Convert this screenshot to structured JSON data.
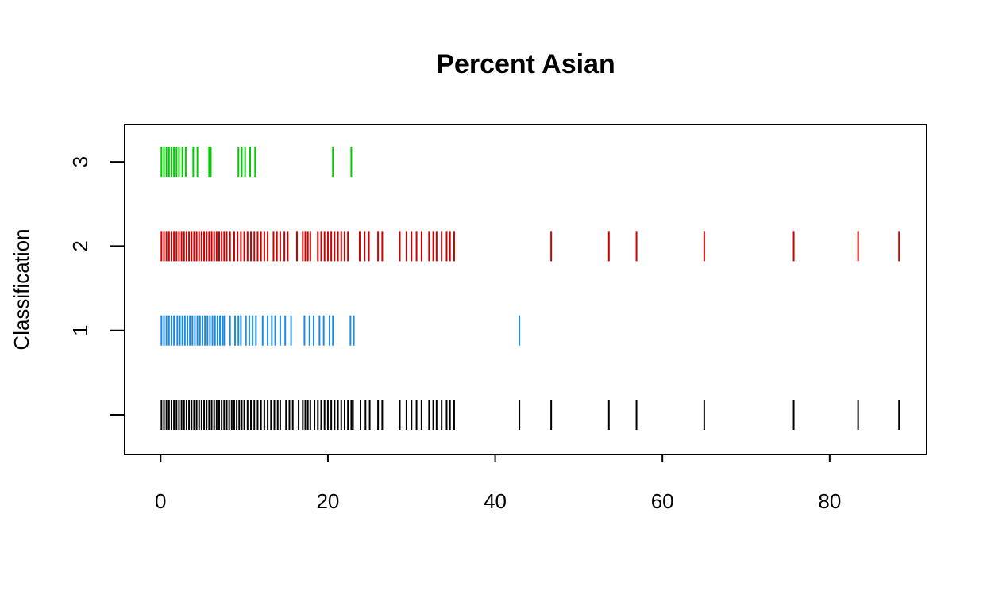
{
  "chart_data": {
    "type": "strip",
    "title": "Percent Asian",
    "xlabel": "",
    "ylabel": "Classification",
    "xlim": [
      -4.3,
      91.6
    ],
    "x_ticks": [
      0,
      20,
      40,
      60,
      80
    ],
    "x_tick_labels": [
      "0",
      "20",
      "40",
      "60",
      "80"
    ],
    "y_tick_labels": [
      "",
      "1",
      "2",
      "3"
    ],
    "grid": false,
    "legend": "none",
    "series": [
      {
        "name": "",
        "row": 0,
        "color": "#000000",
        "values": [
          0.1,
          0.4,
          0.7,
          1.0,
          1.3,
          1.6,
          1.9,
          2.2,
          2.5,
          2.8,
          3.1,
          3.4,
          3.7,
          4.0,
          4.3,
          4.6,
          4.9,
          5.2,
          5.5,
          5.8,
          6.1,
          6.4,
          6.7,
          7.0,
          7.3,
          7.6,
          7.9,
          8.2,
          8.5,
          8.8,
          9.1,
          9.4,
          9.7,
          10.0,
          10.4,
          10.8,
          11.2,
          11.6,
          12.0,
          12.4,
          12.8,
          13.2,
          13.6,
          14.0,
          14.3,
          15.0,
          15.4,
          15.8,
          16.5,
          17.0,
          17.3,
          17.6,
          17.9,
          18.4,
          18.8,
          19.2,
          19.6,
          20.0,
          20.4,
          20.8,
          21.2,
          21.6,
          22.0,
          22.4,
          22.8,
          23.0,
          23.9,
          24.5,
          25.0,
          26.0,
          26.5,
          28.6,
          29.4,
          30.0,
          30.6,
          31.2,
          32.1,
          32.6,
          33.0,
          33.6,
          34.2,
          34.6,
          35.1,
          42.9,
          46.7,
          53.6,
          56.9,
          65.0,
          75.7,
          83.4,
          88.3
        ]
      },
      {
        "name": "",
        "row": 1,
        "color": "#1e88e5",
        "values": [
          0.1,
          0.4,
          0.7,
          1.0,
          1.3,
          1.6,
          2.0,
          2.3,
          2.6,
          2.9,
          3.2,
          3.5,
          3.8,
          4.1,
          4.4,
          4.7,
          5.0,
          5.3,
          5.6,
          5.9,
          6.2,
          6.5,
          6.8,
          7.1,
          7.4,
          7.6,
          8.3,
          8.9,
          9.3,
          9.6,
          10.2,
          10.6,
          11.0,
          11.4,
          12.2,
          12.8,
          13.3,
          13.7,
          14.3,
          14.9,
          15.6,
          17.2,
          17.8,
          18.3,
          19.0,
          19.5,
          20.2,
          20.6,
          22.7,
          23.1,
          42.9
        ]
      },
      {
        "name": "",
        "row": 2,
        "color": "#cc0000",
        "values": [
          0.1,
          0.4,
          0.7,
          1.0,
          1.3,
          1.6,
          1.9,
          2.2,
          2.5,
          2.8,
          3.1,
          3.4,
          3.7,
          4.0,
          4.3,
          4.6,
          4.9,
          5.2,
          5.5,
          5.8,
          6.1,
          6.4,
          6.7,
          7.0,
          7.3,
          7.6,
          7.9,
          8.3,
          8.8,
          9.2,
          9.6,
          10.0,
          10.4,
          10.8,
          11.2,
          11.6,
          12.0,
          12.4,
          12.8,
          13.5,
          13.9,
          14.3,
          14.8,
          15.2,
          16.3,
          17.0,
          17.3,
          17.6,
          17.9,
          18.8,
          19.2,
          19.6,
          20.0,
          20.4,
          20.8,
          21.2,
          21.6,
          22.0,
          22.4,
          23.8,
          24.4,
          24.9,
          26.0,
          26.5,
          28.6,
          29.4,
          30.0,
          30.6,
          31.2,
          32.1,
          32.6,
          33.0,
          33.6,
          34.2,
          34.6,
          35.1,
          46.7,
          53.6,
          56.9,
          65.0,
          75.7,
          83.4,
          88.3
        ]
      },
      {
        "name": "",
        "row": 3,
        "color": "#00cc00",
        "values": [
          0.1,
          0.4,
          0.7,
          1.0,
          1.3,
          1.6,
          1.9,
          2.2,
          2.6,
          3.0,
          3.9,
          4.4,
          5.8,
          6.0,
          9.3,
          9.7,
          10.1,
          10.7,
          11.3,
          20.6,
          22.8
        ]
      }
    ]
  }
}
